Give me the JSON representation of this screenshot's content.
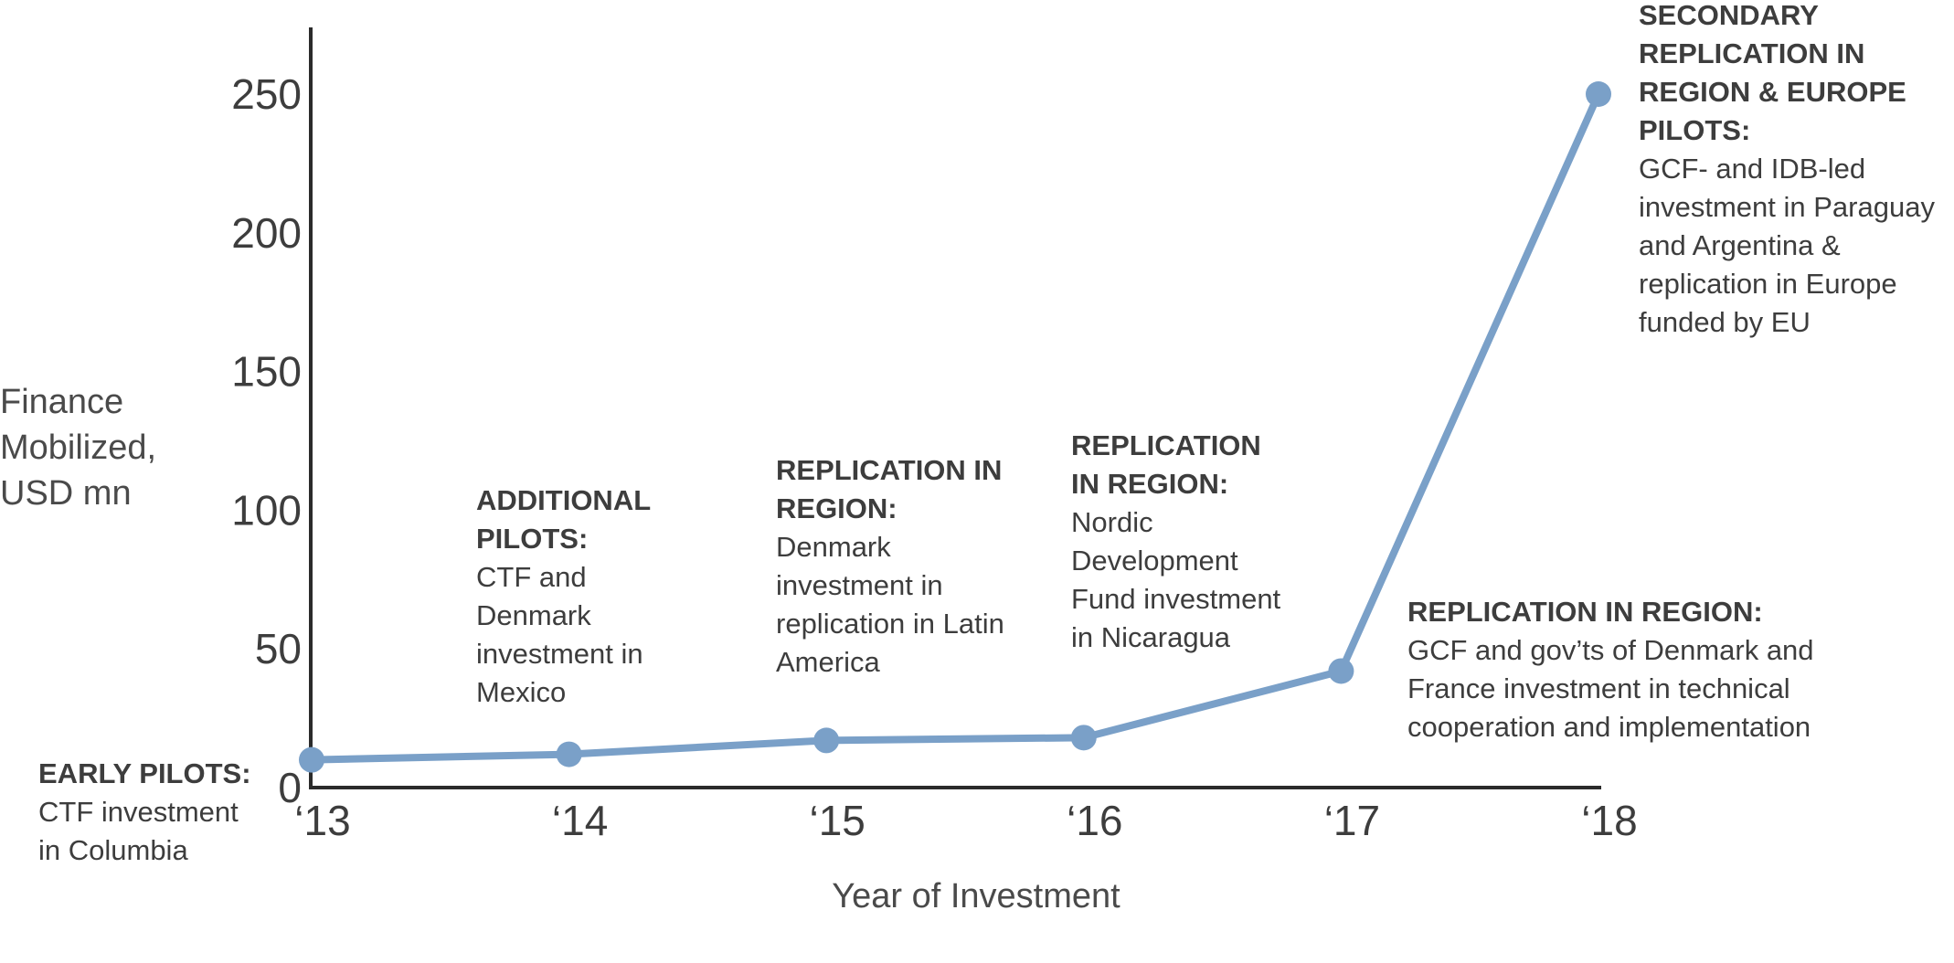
{
  "chart_data": {
    "type": "line",
    "title": "",
    "xlabel": "Year of Investment",
    "ylabel": [
      "Finance",
      "Mobilized,",
      "USD mn"
    ],
    "categories": [
      "‘13",
      "‘14",
      "‘15",
      "‘16",
      "‘17",
      "‘18"
    ],
    "series": [
      {
        "values": [
          10,
          12,
          17,
          18,
          42,
          250
        ],
        "color": "#7aa0c8"
      }
    ],
    "ylim": [
      0,
      270
    ],
    "yticks": [
      "0",
      "50",
      "100",
      "150",
      "200",
      "250"
    ],
    "grid": false,
    "annotations": [
      {
        "title": [
          "EARLY PILOTS:"
        ],
        "body": [
          "CTF investment",
          "in Columbia"
        ]
      },
      {
        "title": [
          "ADDITIONAL",
          "PILOTS:"
        ],
        "body": [
          "CTF and",
          "Denmark",
          "investment in",
          "Mexico"
        ]
      },
      {
        "title": [
          "REPLICATION IN",
          "REGION:"
        ],
        "body": [
          "Denmark",
          "investment in",
          "replication in Latin",
          "America"
        ]
      },
      {
        "title": [
          "REPLICATION",
          "IN REGION:"
        ],
        "body": [
          "Nordic",
          "Development",
          "Fund investment",
          "in Nicaragua"
        ]
      },
      {
        "title": [
          "REPLICATION IN REGION:"
        ],
        "body": [
          "GCF and gov’ts of Denmark and",
          "France investment in technical",
          "cooperation and implementation"
        ]
      },
      {
        "title": [
          "SECONDARY",
          "REPLICATION IN",
          "REGION & EUROPE",
          "PILOTS:"
        ],
        "body": [
          "GCF- and IDB-led",
          "investment in Paraguay",
          "and Argentina &",
          "replication in Europe",
          "funded by EU"
        ]
      }
    ]
  }
}
